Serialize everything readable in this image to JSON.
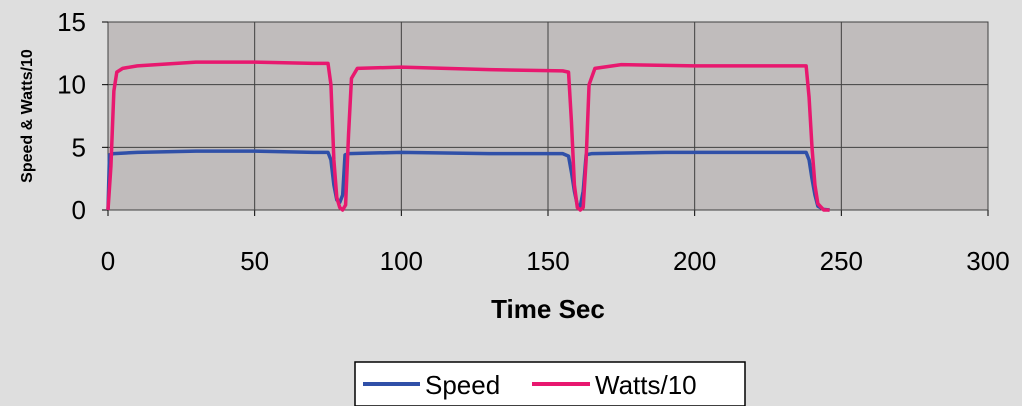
{
  "chart_data": {
    "type": "line",
    "title": "",
    "xlabel": "Time Sec",
    "ylabel": "Speed & Watts/10",
    "xlim": [
      0,
      300
    ],
    "ylim": [
      0,
      15
    ],
    "x_ticks": [
      "0",
      "50",
      "100",
      "150",
      "200",
      "250",
      "300"
    ],
    "y_ticks": [
      "0",
      "5",
      "10",
      "15"
    ],
    "grid": true,
    "legend_position": "bottom",
    "plot_background": "#c0bcbc",
    "series": [
      {
        "name": "Speed",
        "color": "#3050a8",
        "points": [
          [
            0,
            0
          ],
          [
            0.5,
            4.4
          ],
          [
            2,
            4.5
          ],
          [
            10,
            4.6
          ],
          [
            30,
            4.7
          ],
          [
            50,
            4.7
          ],
          [
            70,
            4.6
          ],
          [
            75,
            4.6
          ],
          [
            76,
            4.0
          ],
          [
            77,
            2.0
          ],
          [
            78,
            0.8
          ],
          [
            79,
            0.6
          ],
          [
            80,
            1.2
          ],
          [
            80.8,
            4.4
          ],
          [
            82,
            4.5
          ],
          [
            100,
            4.6
          ],
          [
            130,
            4.5
          ],
          [
            155,
            4.5
          ],
          [
            157,
            4.3
          ],
          [
            158,
            3.0
          ],
          [
            159,
            1.5
          ],
          [
            160,
            0.4
          ],
          [
            161,
            0.3
          ],
          [
            162,
            1.5
          ],
          [
            163,
            4.4
          ],
          [
            165,
            4.5
          ],
          [
            190,
            4.6
          ],
          [
            220,
            4.6
          ],
          [
            238,
            4.6
          ],
          [
            239,
            4.0
          ],
          [
            240,
            2.5
          ],
          [
            241,
            1.2
          ],
          [
            242,
            0.3
          ],
          [
            244,
            0.05
          ],
          [
            246,
            0
          ]
        ]
      },
      {
        "name": "Watts/10",
        "color": "#e8186f",
        "points": [
          [
            0,
            0
          ],
          [
            1,
            3.5
          ],
          [
            2,
            9.5
          ],
          [
            3,
            11.0
          ],
          [
            5,
            11.3
          ],
          [
            10,
            11.5
          ],
          [
            30,
            11.8
          ],
          [
            50,
            11.8
          ],
          [
            70,
            11.7
          ],
          [
            75,
            11.7
          ],
          [
            76,
            10.0
          ],
          [
            77,
            4.0
          ],
          [
            78,
            1.0
          ],
          [
            79,
            0.2
          ],
          [
            80,
            0
          ],
          [
            81,
            0.4
          ],
          [
            82,
            6.0
          ],
          [
            83,
            10.5
          ],
          [
            85,
            11.3
          ],
          [
            100,
            11.4
          ],
          [
            130,
            11.2
          ],
          [
            155,
            11.1
          ],
          [
            157,
            11.0
          ],
          [
            158,
            7.0
          ],
          [
            159,
            2.0
          ],
          [
            160,
            0.2
          ],
          [
            161,
            0
          ],
          [
            162,
            0.2
          ],
          [
            163,
            4.0
          ],
          [
            164,
            10.0
          ],
          [
            166,
            11.3
          ],
          [
            175,
            11.6
          ],
          [
            200,
            11.5
          ],
          [
            230,
            11.5
          ],
          [
            238,
            11.5
          ],
          [
            239,
            9.0
          ],
          [
            240,
            5.0
          ],
          [
            241,
            2.0
          ],
          [
            242,
            0.5
          ],
          [
            244,
            0
          ],
          [
            246,
            0
          ]
        ]
      }
    ]
  }
}
